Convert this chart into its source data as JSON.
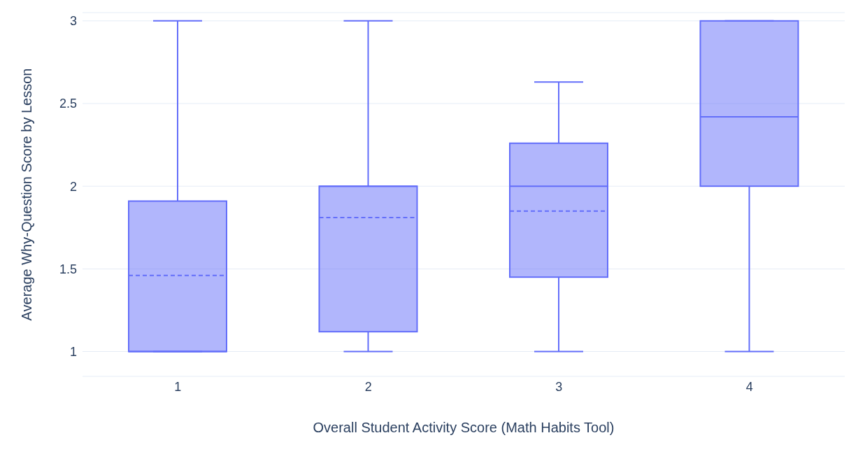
{
  "chart_data": {
    "type": "box",
    "xlabel": "Overall Student Activity Score (Math Habits Tool)",
    "ylabel": "Average Why-Question Score by Lesson",
    "categories": [
      "1",
      "2",
      "3",
      "4"
    ],
    "color": "#636efa",
    "ylim": [
      0.85,
      3.05
    ],
    "yticks": [
      1,
      {
        "value": 1.5,
        "label": "1.5"
      },
      2,
      {
        "value": 2.5,
        "label": "2.5"
      },
      3
    ],
    "grid": "y",
    "boxes": [
      {
        "low": 1,
        "q1": 1,
        "median": 1,
        "q3": 1.91,
        "high": 3,
        "mean": 1.46
      },
      {
        "low": 1,
        "q1": 1.12,
        "median": 2,
        "q3": 2,
        "high": 3,
        "mean": 1.81
      },
      {
        "low": 1,
        "q1": 1.45,
        "median": 2,
        "q3": 2.26,
        "high": 2.63,
        "mean": 1.85
      },
      {
        "low": 1,
        "q1": 2,
        "median": 2.42,
        "q3": 3,
        "high": 3,
        "mean": 2.42
      }
    ]
  }
}
